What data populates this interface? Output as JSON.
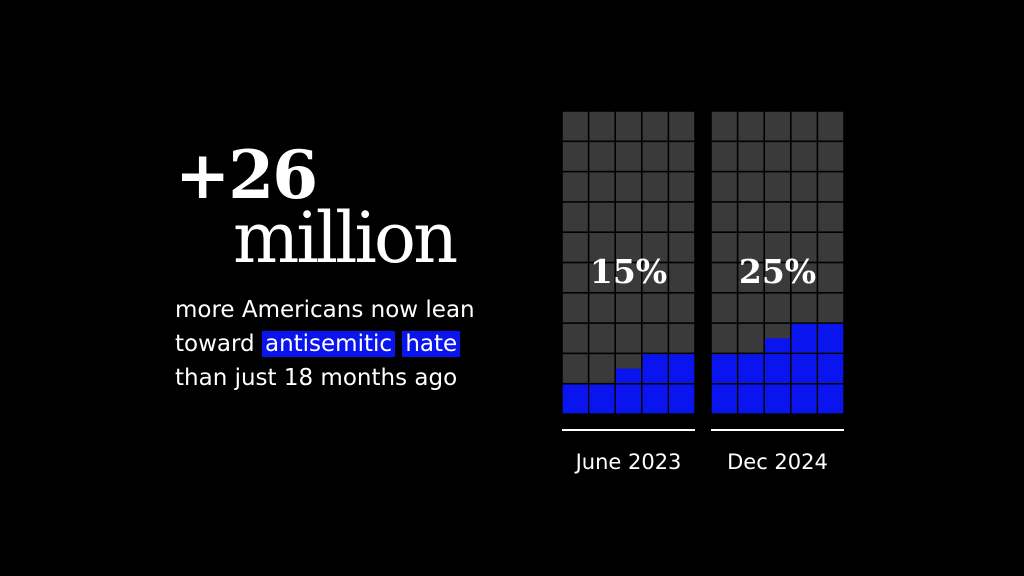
{
  "headline": {
    "line1": "+26",
    "line2": "million"
  },
  "caption": {
    "part1": "more Americans now lean toward ",
    "highlight1": "antisemitic",
    "space": " ",
    "highlight2": "hate",
    "part2": " than just 18 months ago"
  },
  "colors": {
    "background": "#000000",
    "grid_cell": "#3a3a3a",
    "filled_cell": "#0a14ee",
    "text": "#ffffff"
  },
  "chart_data": {
    "type": "waffle",
    "unit": "percent",
    "grid": {
      "columns": 5,
      "rows": 10
    },
    "categories": [
      "June 2023",
      "Dec 2024"
    ],
    "values": [
      15,
      25
    ],
    "labels": [
      "15%",
      "25%"
    ]
  }
}
